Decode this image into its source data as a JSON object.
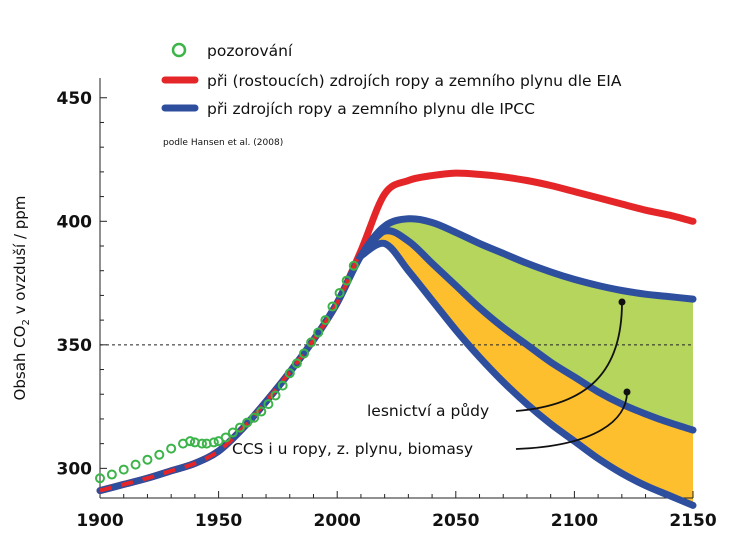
{
  "chart_data": {
    "type": "line",
    "ylabel": "Obsah CO₂ v ovzduší / ppm",
    "ylabel_parts": [
      "Obsah CO",
      "2",
      " v ovzduší / ppm"
    ],
    "xlim": [
      1900,
      2150
    ],
    "ylim": [
      288,
      458
    ],
    "x_ticks": [
      1900,
      1950,
      2000,
      2050,
      2100,
      2150
    ],
    "y_ticks": [
      300,
      350,
      400,
      450
    ],
    "reference_line": {
      "y": 350,
      "style": "dashed"
    },
    "legend_position": "top-left",
    "source_note": "podle Hansen et al. (2008)",
    "colors": {
      "observed": "#3cb44a",
      "eia": "#e52629",
      "ipcc": "#2e4e9e",
      "green_band": "#b5d55c",
      "orange_band": "#fdbf2d"
    },
    "series": [
      {
        "name": "pozorování",
        "style": "open-circle",
        "x": [
          1900,
          1905,
          1910,
          1915,
          1920,
          1925,
          1930,
          1935,
          1938,
          1940,
          1943,
          1945,
          1948,
          1950,
          1953,
          1956,
          1959,
          1962,
          1965,
          1968,
          1971,
          1974,
          1977,
          1980,
          1983,
          1986,
          1989,
          1992,
          1995,
          1998,
          2001,
          2004,
          2007
        ],
        "values": [
          296,
          297.5,
          299.5,
          301.5,
          303.5,
          305.5,
          308,
          310,
          311,
          310.5,
          310,
          310,
          310.5,
          311,
          312.5,
          314.5,
          316.5,
          318.5,
          320.5,
          323,
          326,
          329.5,
          333.5,
          338.5,
          342.5,
          346.5,
          351,
          355,
          360,
          365.5,
          371,
          376,
          382
        ]
      },
      {
        "name": "při (rostoucích) zdrojích ropy a zemního plynu dle EIA",
        "style": "line",
        "x": [
          1900,
          1910,
          1920,
          1930,
          1940,
          1950,
          1960,
          1970,
          1980,
          1990,
          2000,
          2010,
          2020,
          2030,
          2040,
          2050,
          2060,
          2070,
          2080,
          2090,
          2100,
          2110,
          2120,
          2130,
          2140,
          2150
        ],
        "values": [
          291,
          293.5,
          296,
          299,
          302,
          307,
          316,
          327,
          339,
          352,
          367,
          388,
          411,
          416.5,
          418.5,
          419.5,
          419,
          418,
          416.5,
          414.5,
          412,
          409.5,
          407,
          404.5,
          402.5,
          400
        ]
      },
      {
        "name": "při zdrojích ropy a zemního plynu dle IPCC",
        "style": "line",
        "x": [
          1900,
          1910,
          1920,
          1930,
          1940,
          1950,
          1960,
          1970,
          1980,
          1990,
          2000,
          2010,
          2020,
          2030,
          2040,
          2050,
          2060,
          2070,
          2080,
          2090,
          2100,
          2110,
          2120,
          2130,
          2140,
          2150
        ],
        "values": [
          291,
          293.5,
          296,
          299,
          302,
          307,
          316,
          327,
          339,
          352,
          367,
          386,
          398,
          401,
          399.5,
          395.5,
          391,
          387,
          383,
          379.5,
          376.5,
          374,
          372,
          370.5,
          369.5,
          368.5
        ]
      },
      {
        "name": "",
        "style": "line",
        "x": [
          2010,
          2020,
          2030,
          2040,
          2050,
          2060,
          2070,
          2080,
          2090,
          2100,
          2110,
          2120,
          2130,
          2140,
          2150
        ],
        "values": [
          386,
          396,
          392,
          383,
          374,
          365,
          357,
          350,
          343,
          337,
          331,
          326,
          322,
          318.5,
          315.5
        ]
      },
      {
        "name": "",
        "style": "line",
        "x": [
          2010,
          2020,
          2030,
          2040,
          2050,
          2060,
          2070,
          2080,
          2090,
          2100,
          2110,
          2120,
          2130,
          2140,
          2150
        ],
        "values": [
          386,
          391,
          380,
          368,
          356,
          345,
          335,
          326,
          318,
          311,
          304,
          298,
          293,
          289,
          285
        ]
      }
    ],
    "annotations": [
      {
        "text": "lesnictví a půdy",
        "band": "green"
      },
      {
        "text": "CCS i u ropy, z. plynu, biomasy",
        "band": "orange"
      }
    ]
  }
}
